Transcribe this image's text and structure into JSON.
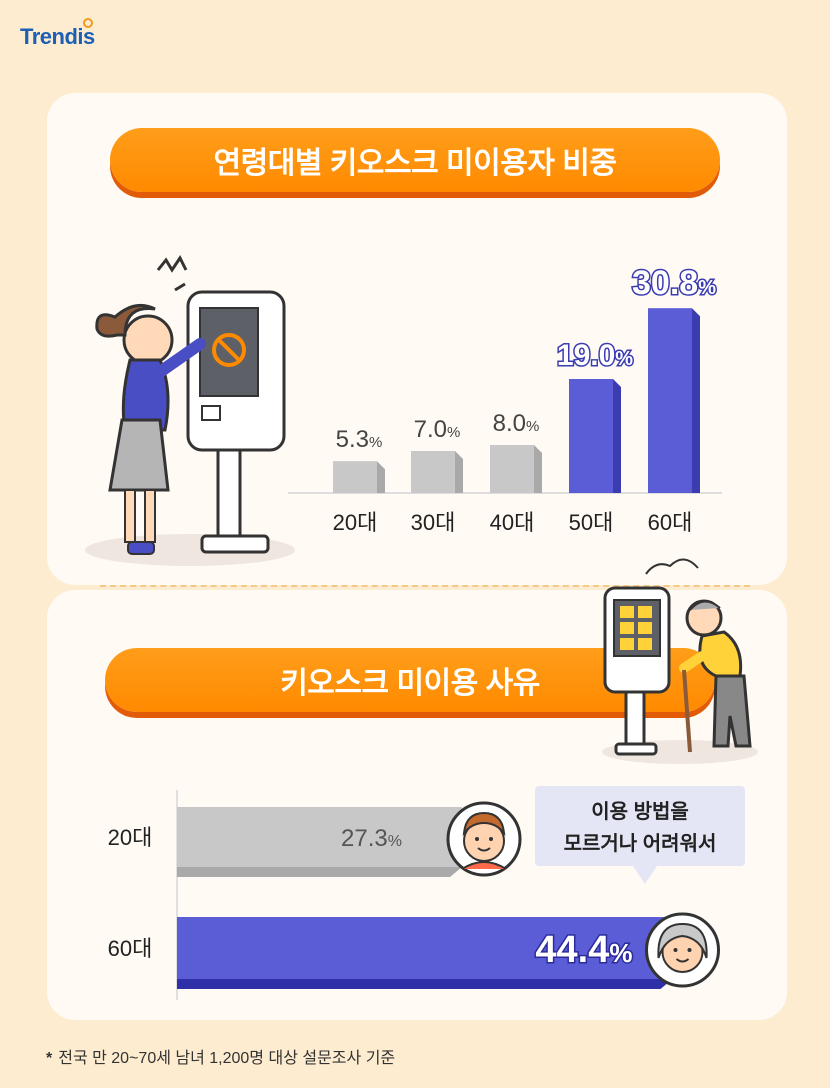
{
  "logo": {
    "text": "Trendis"
  },
  "section1": {
    "title": "연령대별 키오스크 미이용자 비중"
  },
  "section2": {
    "title": "키오스크 미이용 사유"
  },
  "bubble": {
    "line1": "이용 방법을",
    "line2": "모르거나 어려워서"
  },
  "footnote": {
    "mark": "*",
    "text": "전국 만 20~70세 남녀 1,200명 대상 설문조사 기준"
  },
  "colors": {
    "gray_bar": "#c8c8c8",
    "blue_bar": "#5a5dd6",
    "orange": "#ff8a00",
    "background": "#fdecd0"
  },
  "chart_data": [
    {
      "type": "bar",
      "title": "연령대별 키오스크 미이용자 비중",
      "categories": [
        "20대",
        "30대",
        "40대",
        "50대",
        "60대"
      ],
      "values": [
        5.3,
        7.0,
        8.0,
        19.0,
        30.8
      ],
      "value_labels": [
        "5.3",
        "7.0",
        "8.0",
        "19.0",
        "30.8"
      ],
      "unit": "%",
      "ylim": [
        0,
        35
      ],
      "highlight": [
        false,
        false,
        false,
        true,
        true
      ]
    },
    {
      "type": "bar",
      "orientation": "horizontal",
      "title": "키오스크 미이용 사유",
      "categories": [
        "20대",
        "60대"
      ],
      "values": [
        27.3,
        44.4
      ],
      "value_labels": [
        "27.3",
        "44.4"
      ],
      "unit": "%",
      "xlim": [
        0,
        50
      ]
    }
  ]
}
